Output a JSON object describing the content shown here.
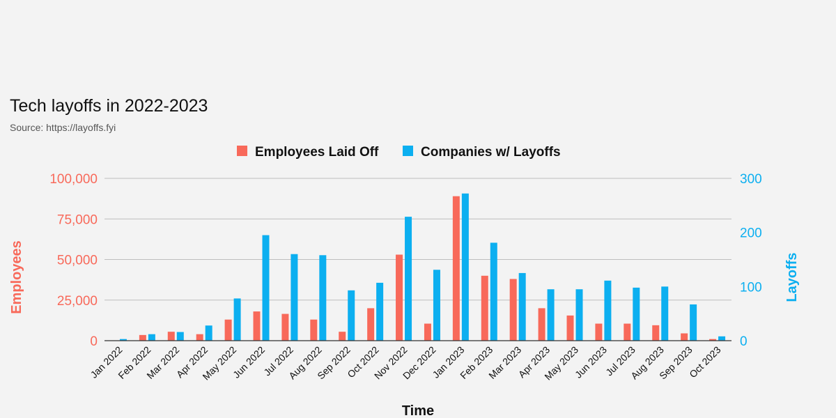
{
  "chart_data": {
    "type": "bar",
    "title": "Tech layoffs in 2022-2023",
    "subtitle": "Source: https://layoffs.fyi",
    "xlabel": "Time",
    "ylabel_left": "Employees",
    "ylabel_right": "Layoffs",
    "legend_position": "top-center",
    "grid": true,
    "categories": [
      "Jan 2022",
      "Feb 2022",
      "Mar 2022",
      "Apr 2022",
      "May 2022",
      "Jun 2022",
      "Jul 2022",
      "Aug 2022",
      "Sep 2022",
      "Oct 2022",
      "Nov 2022",
      "Dec 2022",
      "Jan 2023",
      "Feb 2023",
      "Mar 2023",
      "Apr 2023",
      "May 2023",
      "Jun 2023",
      "Jul 2023",
      "Aug 2023",
      "Sep 2023",
      "Oct 2023"
    ],
    "series": [
      {
        "name": "Employees Laid Off",
        "axis": "left",
        "color": "#f8695a",
        "values": [
          0,
          3500,
          5500,
          4000,
          13000,
          18000,
          16500,
          13000,
          5500,
          20000,
          53000,
          10500,
          89000,
          40000,
          38000,
          20000,
          15500,
          10500,
          10500,
          9500,
          4500,
          1000
        ]
      },
      {
        "name": "Companies w/ Layoffs",
        "axis": "right",
        "color": "#0caff0",
        "values": [
          3,
          12,
          16,
          28,
          78,
          195,
          160,
          158,
          93,
          107,
          229,
          131,
          272,
          181,
          125,
          95,
          95,
          111,
          98,
          100,
          67,
          8
        ]
      }
    ],
    "y_left": {
      "min": 0,
      "max": 100000,
      "ticks": [
        0,
        25000,
        50000,
        75000,
        100000
      ],
      "tick_labels": [
        "0",
        "25,000",
        "50,000",
        "75,000",
        "100,000"
      ],
      "color": "#f8695a"
    },
    "y_right": {
      "min": 0,
      "max": 300,
      "ticks": [
        0,
        100,
        200,
        300
      ],
      "tick_labels": [
        "0",
        "100",
        "200",
        "300"
      ],
      "color": "#0caff0"
    }
  }
}
